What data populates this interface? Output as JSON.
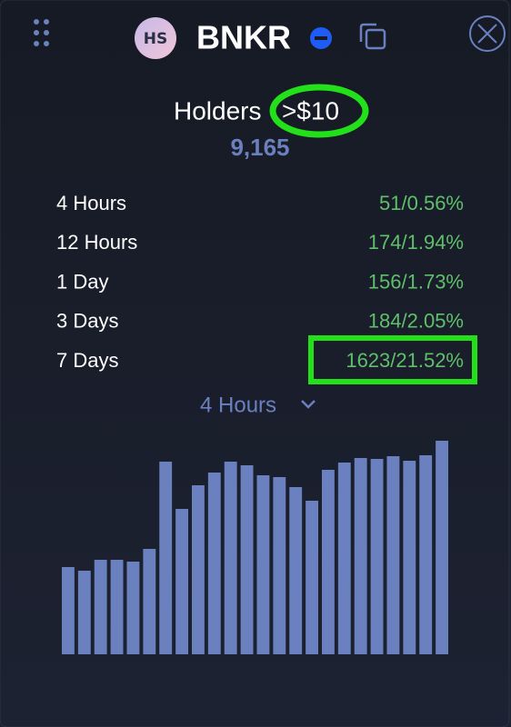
{
  "header": {
    "avatar": "HS",
    "token": "BNKR"
  },
  "holders": {
    "title": "Holders",
    "threshold": ">$10",
    "count": "9,165"
  },
  "stats": [
    {
      "label": "4 Hours",
      "value": "51/0.56%"
    },
    {
      "label": "12 Hours",
      "value": "174/1.94%"
    },
    {
      "label": "1 Day",
      "value": "156/1.73%"
    },
    {
      "label": "3 Days",
      "value": "184/2.05%"
    },
    {
      "label": "7 Days",
      "value": "1623/21.52%"
    }
  ],
  "selector": "4 Hours",
  "chart_data": {
    "type": "bar",
    "color": "#6a80bf",
    "values": [
      96,
      92,
      104,
      104,
      102,
      116,
      212,
      160,
      186,
      200,
      212,
      208,
      197,
      195,
      184,
      169,
      203,
      211,
      216,
      215,
      218,
      213,
      219,
      235
    ]
  }
}
